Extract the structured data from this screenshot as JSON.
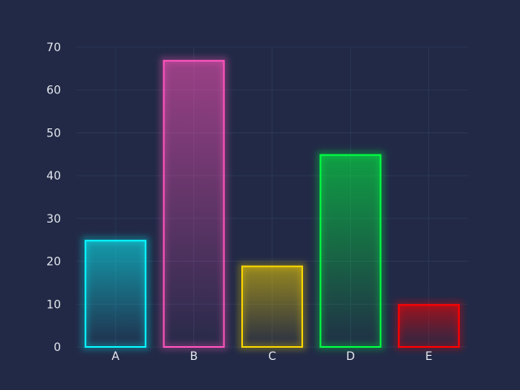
{
  "chart_data": {
    "type": "bar",
    "categories": [
      "A",
      "B",
      "C",
      "D",
      "E"
    ],
    "values": [
      25,
      67,
      19,
      45,
      10
    ],
    "colors": [
      "#08F7FE",
      "#FE53BB",
      "#F5D300",
      "#00FF41",
      "#FF0000"
    ],
    "ylim": [
      0,
      70
    ],
    "yticks": [
      "0",
      "10",
      "20",
      "30",
      "40",
      "50",
      "60",
      "70"
    ],
    "xlabel": "",
    "ylabel": "",
    "title": "",
    "grid": true,
    "style": "neon-glow"
  }
}
